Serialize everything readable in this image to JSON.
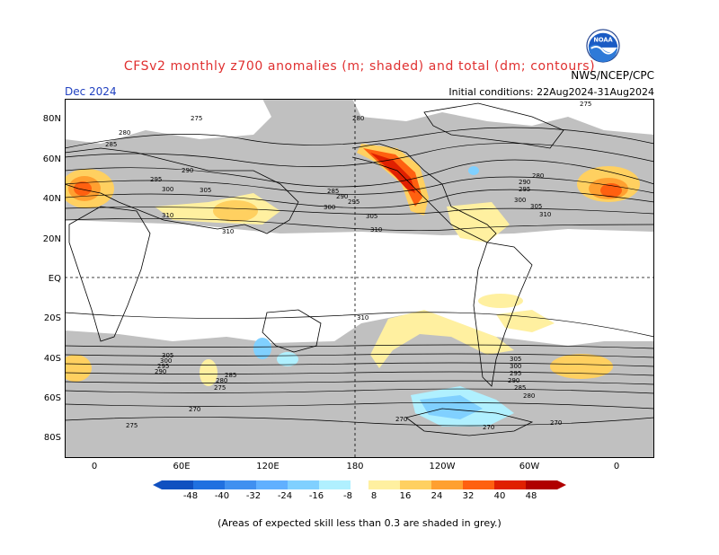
{
  "header": {
    "title": "CFSv2 monthly z700 anomalies (m; shaded) and total (dm; contours)",
    "agency": "NWS/NCEP/CPC",
    "month": "Dec 2024",
    "initial_conditions": "Initial conditions: 22Aug2024-31Aug2024"
  },
  "map": {
    "lat_labels": [
      "80N",
      "60N",
      "40N",
      "20N",
      "EQ",
      "20S",
      "40S",
      "60S",
      "80S"
    ],
    "lon_labels": [
      "0",
      "60E",
      "120E",
      "180",
      "120W",
      "60W",
      "0"
    ],
    "contour_labels": [
      "275",
      "280",
      "285",
      "290",
      "295",
      "300",
      "305",
      "310",
      "280",
      "285",
      "290",
      "295",
      "300",
      "305",
      "310",
      "275",
      "280",
      "290",
      "295",
      "300",
      "305",
      "310",
      "310",
      "310",
      "305",
      "300",
      "295",
      "290",
      "285",
      "280",
      "275",
      "270",
      "270",
      "275",
      "270",
      "270",
      "305",
      "300",
      "295",
      "290",
      "285",
      "280"
    ],
    "colors": {
      "skill_grey": "#c0c0c0",
      "land": "#ffffff",
      "pos_8": "#fff0a0",
      "pos_16": "#ffd060",
      "pos_24": "#ffa030",
      "pos_32": "#ff6010",
      "pos_40": "#e02000",
      "pos_48": "#b00000",
      "neg_8": "#b0f0ff",
      "neg_16": "#80d0ff",
      "neg_24": "#60b0ff",
      "neg_32": "#4090f0",
      "neg_40": "#2070e0",
      "neg_48": "#1050c0"
    }
  },
  "colorbar": {
    "labels": [
      "-48",
      "-40",
      "-32",
      "-24",
      "-16",
      "-8",
      "8",
      "16",
      "24",
      "32",
      "40",
      "48"
    ]
  },
  "footnote": "(Areas of expected skill less than 0.3 are shaded in grey.)"
}
